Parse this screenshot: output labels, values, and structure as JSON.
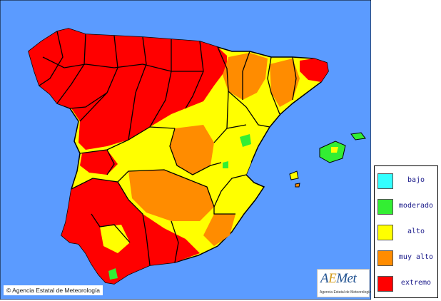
{
  "map": {
    "colors": {
      "sea": "#5b9bff",
      "bajo": "#33ffff",
      "moderado": "#33ee33",
      "alto": "#ffff00",
      "muy_alto": "#ff8c00",
      "extremo": "#ff0000",
      "border": "#000000"
    }
  },
  "legend": {
    "items": [
      {
        "label": "bajo",
        "color": "#33ffff"
      },
      {
        "label": "moderado",
        "color": "#33ee33"
      },
      {
        "label": "alto",
        "color": "#ffff00"
      },
      {
        "label": "muy alto",
        "color": "#ff8c00"
      },
      {
        "label": "extremo",
        "color": "#ff0000"
      }
    ]
  },
  "copyright": {
    "symbol": "©",
    "text": "Agencia Estatal de Meteorología"
  },
  "logo": {
    "word_a": "A",
    "word_e": "E",
    "word_met": "Met",
    "subtitle": "Agencia Estatal de Meteorología"
  }
}
